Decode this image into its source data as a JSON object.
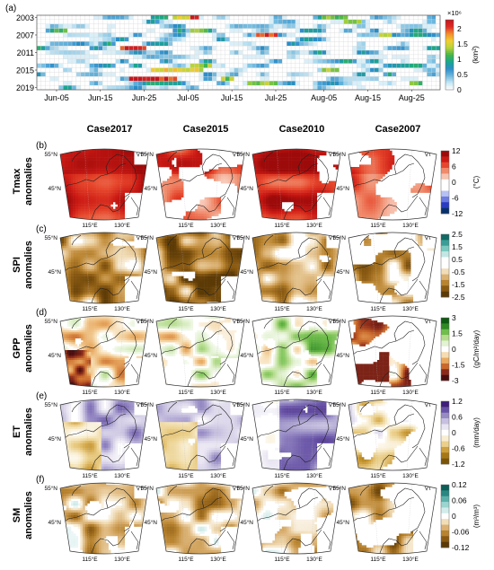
{
  "figure": {
    "panel_a_label": "(a)",
    "panel_labels": [
      "(b)",
      "(c)",
      "(d)",
      "(e)",
      "(f)"
    ],
    "case_titles": [
      "Case2017",
      "Case2015",
      "Case2010",
      "Case2007"
    ]
  },
  "chart_data": [
    {
      "type": "heatmap",
      "panel": "(a)",
      "y_tick_labels": [
        "2003",
        "2007",
        "2011",
        "2015",
        "2019"
      ],
      "x_tick_labels": [
        "Jun-05",
        "Jun-15",
        "Jun-25",
        "Jul-05",
        "Jul-15",
        "Jul-25",
        "Aug-05",
        "Aug-15",
        "Aug-25"
      ],
      "years": [
        2003,
        2004,
        2005,
        2006,
        2007,
        2008,
        2009,
        2010,
        2011,
        2012,
        2013,
        2014,
        2015,
        2016,
        2017,
        2018,
        2019
      ],
      "colorbar": {
        "multiplier": "×10⁶",
        "unit": "(km²)",
        "ticks": [
          "0",
          "0.5",
          "1",
          "1.5",
          "2"
        ],
        "range": [
          0,
          2.3
        ],
        "colors": [
          "#ffffff",
          "#c6e7f5",
          "#6fb8de",
          "#2a8cc9",
          "#1aa78b",
          "#45b649",
          "#b9d33b",
          "#f2cf31",
          "#f28b2c",
          "#de2a26",
          "#c4161c"
        ]
      },
      "highlights": [
        {
          "year": 2003,
          "period": "Jun-27 to Jun-30",
          "value": 0.9
        },
        {
          "year": 2003,
          "period": "Jul-02 to Jul-05",
          "value": 1.6
        },
        {
          "year": 2003,
          "period": "Jul-06 to Jul-07",
          "value": 2.0
        },
        {
          "year": 2003,
          "period": "Aug-05 to Aug-10",
          "value": 1.2
        },
        {
          "year": 2004,
          "period": "Aug-10 to Aug-13",
          "value": 1.2
        },
        {
          "year": 2006,
          "period": "Jun-05 to Jun-07",
          "value": 1.2
        },
        {
          "year": 2006,
          "period": "Jul-06 to Jul-09",
          "value": 1.2
        },
        {
          "year": 2007,
          "period": "Jul-21 to Jul-25",
          "value": 2.1
        },
        {
          "year": 2007,
          "period": "Aug-18 to Aug-20",
          "value": 1.3
        },
        {
          "year": 2010,
          "period": "Jun-20 to Jun-25",
          "value": 2.2
        },
        {
          "year": 2014,
          "period": "Jul-06 to Jul-10",
          "value": 1.3
        },
        {
          "year": 2015,
          "period": "Jun-27 to Jul-08",
          "value": 1.5
        },
        {
          "year": 2015,
          "period": "Aug-05 to Aug-08",
          "value": 1.3
        },
        {
          "year": 2017,
          "period": "Jun-22 to Jul-02",
          "value": 2.2
        },
        {
          "year": 2017,
          "period": "Jul-13 to Jul-15",
          "value": 1.3
        },
        {
          "year": 2018,
          "period": "Jul-19 to Jul-25",
          "value": 1.3
        },
        {
          "year": 2018,
          "period": "Aug-25 to Aug-27",
          "value": 1.2
        }
      ]
    },
    {
      "type": "map",
      "panels": "(b)-(f)",
      "cases": [
        "Case2017",
        "Case2015",
        "Case2010",
        "Case2007"
      ],
      "lat_labels": [
        "55°N",
        "45°N"
      ],
      "lon_labels": [
        "115°E",
        "130°E"
      ],
      "rows": [
        {
          "label": "Tmax",
          "sublabel": "anomalies",
          "unit": "(°C)",
          "ticks": [
            "12",
            "6",
            "0",
            "-6",
            "-12"
          ],
          "range": [
            -12,
            12
          ],
          "colors": [
            "#08306b",
            "#2a3cc2",
            "#6b7be0",
            "#b7c0f2",
            "#ffffff",
            "#ffffff",
            "#f7c3b1",
            "#f08a6b",
            "#e6472c",
            "#cc1a14",
            "#9d0a0a"
          ]
        },
        {
          "label": "SPI",
          "sublabel": "anomalies",
          "unit": "",
          "ticks": [
            "2.5",
            "1.5",
            "0.5",
            "-0.5",
            "-1.5",
            "-2.5"
          ],
          "range": [
            -2.5,
            2.5
          ],
          "colors": [
            "#5c3a06",
            "#8a5a12",
            "#b98430",
            "#dbb172",
            "#f1ddb8",
            "#ffffff",
            "#ffffff",
            "#c2e7e3",
            "#7cc9c0",
            "#3a9e96",
            "#116a64"
          ]
        },
        {
          "label": "GPP",
          "sublabel": "anomalies",
          "unit": "(gC/m²/day)",
          "ticks": [
            "3",
            "1.5",
            "0",
            "-1.5",
            "-3"
          ],
          "range": [
            -3,
            3
          ],
          "colors": [
            "#4a0d0d",
            "#8c2a1a",
            "#c9682a",
            "#e9aa61",
            "#f6dcb0",
            "#ffffff",
            "#e3f2d2",
            "#b5dc8d",
            "#6fbd4b",
            "#2f8a24",
            "#0f5a12"
          ]
        },
        {
          "label": "ET",
          "sublabel": "anomalies",
          "unit": "(mm/day)",
          "ticks": [
            "1.2",
            "0.6",
            "0",
            "-0.6",
            "-1.2"
          ],
          "range": [
            -1.2,
            1.2
          ],
          "colors": [
            "#7a5408",
            "#a67714",
            "#cfa03e",
            "#ebd08c",
            "#f8edd0",
            "#ffffff",
            "#e8e4f1",
            "#c7c0df",
            "#978bc4",
            "#6752a5",
            "#3f1f7a"
          ]
        },
        {
          "label": "SM",
          "sublabel": "anomalies",
          "unit": "(m³/m³)",
          "ticks": [
            "0.12",
            "0.06",
            "0",
            "-0.06",
            "-0.12"
          ],
          "range": [
            -0.12,
            0.12
          ],
          "colors": [
            "#5c3a06",
            "#8a5a12",
            "#b98430",
            "#dbb172",
            "#f1ddb8",
            "#ffffff",
            "#d2ecea",
            "#9ad5cf",
            "#5cb1aa",
            "#2a8781",
            "#0c5e58"
          ]
        }
      ]
    }
  ]
}
